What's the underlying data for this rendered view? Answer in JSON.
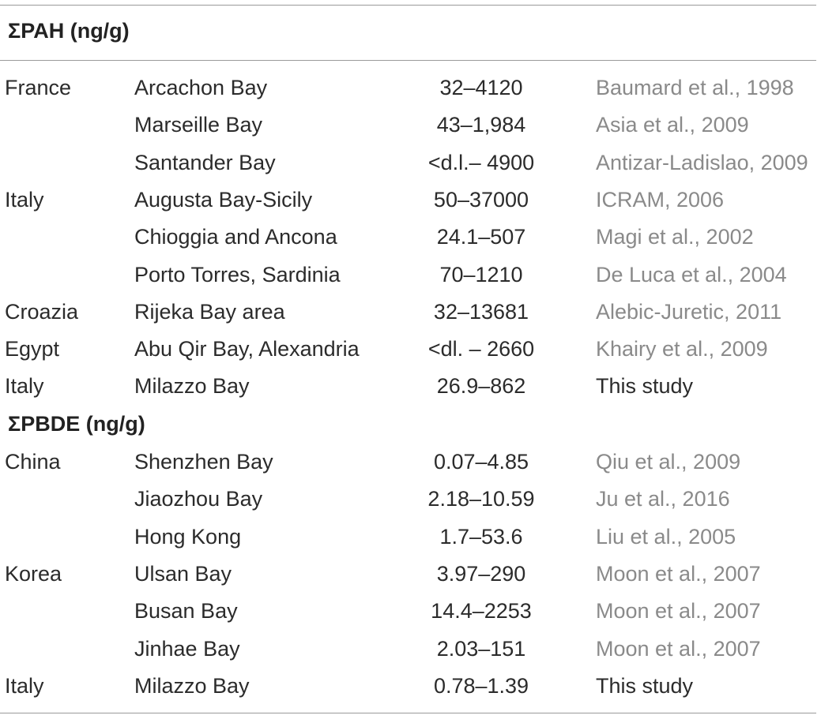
{
  "sections": [
    {
      "heading": "ΣPAH (ng/g)",
      "rows": [
        {
          "country": "France",
          "location": "Arcachon Bay",
          "range": "32–4120",
          "reference": "Baumard et al., 1998",
          "own": false
        },
        {
          "country": "",
          "location": "Marseille Bay",
          "range": "43–1,984",
          "reference": "Asia et al., 2009",
          "own": false
        },
        {
          "country": "",
          "location": "Santander Bay",
          "range": "<d.l.– 4900",
          "reference": "Antizar-Ladislao, 2009",
          "own": false
        },
        {
          "country": "Italy",
          "location": "Augusta Bay-Sicily",
          "range": "50–37000",
          "reference": "ICRAM, 2006",
          "own": false
        },
        {
          "country": "",
          "location": "Chioggia and Ancona",
          "range": "24.1–507",
          "reference": "Magi et al., 2002",
          "own": false
        },
        {
          "country": "",
          "location": "Porto Torres, Sardinia",
          "range": "70–1210",
          "reference": "De Luca et al., 2004",
          "own": false
        },
        {
          "country": "Croazia",
          "location": "Rijeka Bay area",
          "range": "32–13681",
          "reference": "Alebic-Juretic, 2011",
          "own": false
        },
        {
          "country": "Egypt",
          "location": "Abu Qir Bay, Alexandria",
          "range": "<dl. – 2660",
          "reference": "Khairy et al., 2009",
          "own": false
        },
        {
          "country": "Italy",
          "location": "Milazzo Bay",
          "range": "26.9–862",
          "reference": "This study",
          "own": true
        }
      ]
    },
    {
      "heading": "ΣPBDE (ng/g)",
      "rows": [
        {
          "country": "China",
          "location": "Shenzhen Bay",
          "range": "0.07–4.85",
          "reference": "Qiu et al., 2009",
          "own": false
        },
        {
          "country": "",
          "location": "Jiaozhou Bay",
          "range": "2.18–10.59",
          "reference": "Ju et al., 2016",
          "own": false
        },
        {
          "country": "",
          "location": "Hong Kong",
          "range": "1.7–53.6",
          "reference": "Liu et al., 2005",
          "own": false
        },
        {
          "country": "Korea",
          "location": "Ulsan Bay",
          "range": "3.97–290",
          "reference": "Moon et al., 2007",
          "own": false
        },
        {
          "country": "",
          "location": "Busan Bay",
          "range": "14.4–2253",
          "reference": "Moon et al., 2007",
          "own": false
        },
        {
          "country": "",
          "location": "Jinhae Bay",
          "range": "2.03–151",
          "reference": "Moon et al., 2007",
          "own": false
        },
        {
          "country": "Italy",
          "location": "Milazzo Bay",
          "range": "0.78–1.39",
          "reference": "This study",
          "own": true
        }
      ]
    }
  ],
  "colors": {
    "text": "#2b2b2b",
    "reference": "#8a8a8a",
    "rule": "#9a9a9a"
  }
}
